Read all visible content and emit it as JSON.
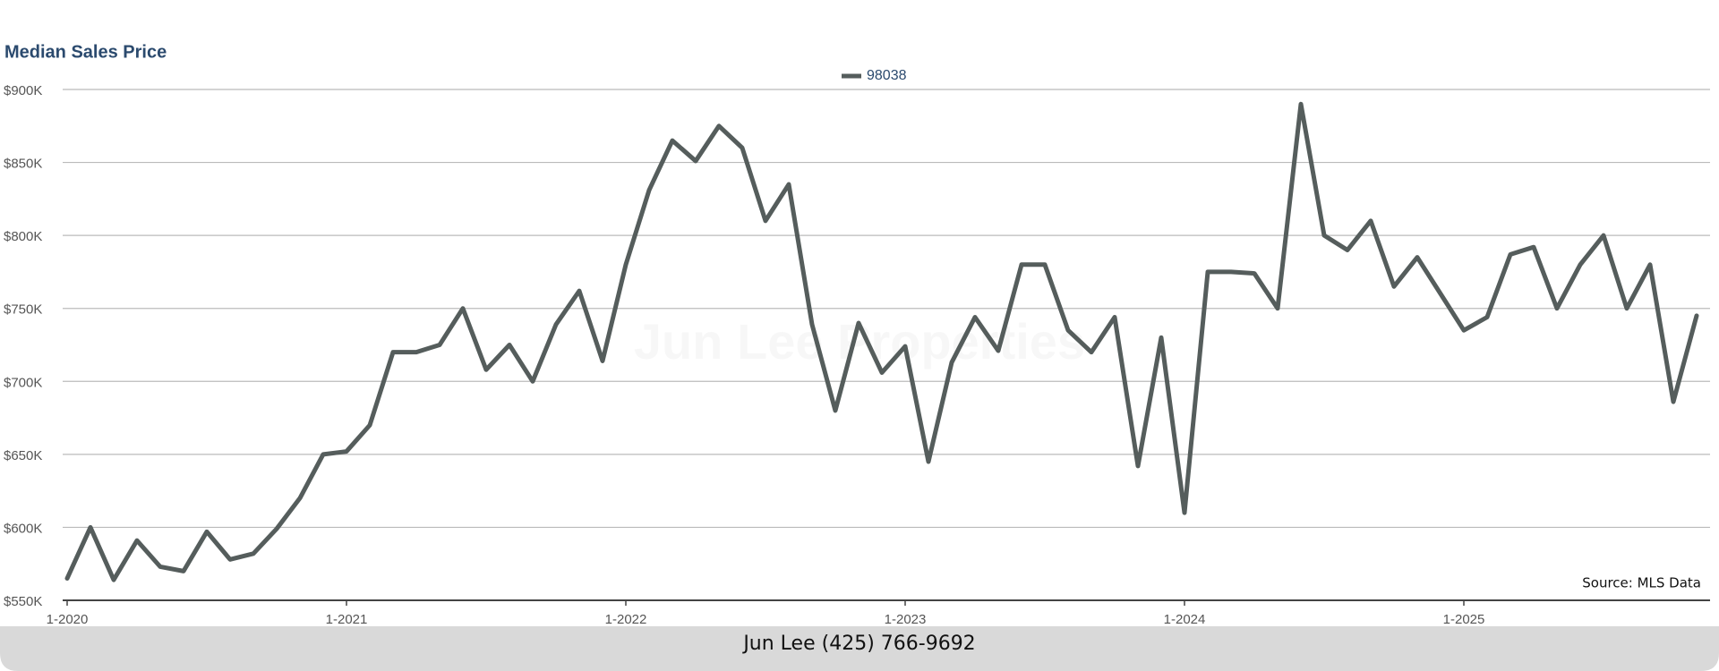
{
  "chart_data": {
    "type": "line",
    "title": "Median Sales Price",
    "watermark": "Jun Lee Properties",
    "source": "Source: MLS Data",
    "footer": "Jun Lee (425) 766-9692",
    "categories": [
      "1-2020",
      null,
      null,
      null,
      null,
      null,
      null,
      null,
      null,
      null,
      null,
      null,
      "1-2021",
      null,
      null,
      null,
      null,
      null,
      null,
      null,
      null,
      null,
      null,
      null,
      "1-2022",
      null,
      null,
      null,
      null,
      null,
      null,
      null,
      null,
      null,
      null,
      null,
      "1-2023",
      null,
      null,
      null,
      null,
      null,
      null,
      null,
      null,
      null,
      null,
      null,
      "1-2024",
      null,
      null,
      null,
      null,
      null,
      null,
      null,
      null,
      null,
      null,
      null,
      "1-2025",
      null,
      null,
      null,
      null,
      null,
      null,
      null,
      null,
      null,
      null
    ],
    "series": [
      {
        "name": "98038",
        "color": "#555d5c",
        "values": [
          565000,
          600000,
          564000,
          591000,
          573000,
          570000,
          597000,
          578000,
          582000,
          599000,
          620000,
          650000,
          652000,
          670000,
          720000,
          720000,
          725000,
          750000,
          708000,
          725000,
          700000,
          739000,
          762000,
          714000,
          780000,
          831000,
          865000,
          851000,
          875000,
          860000,
          810000,
          835000,
          739000,
          680000,
          740000,
          706000,
          724000,
          645000,
          713000,
          744000,
          721000,
          780000,
          780000,
          735000,
          720000,
          744000,
          642000,
          730000,
          610000,
          775000,
          775000,
          774000,
          750000,
          890000,
          800000,
          790000,
          810000,
          765000,
          785000,
          760000,
          735000,
          744000,
          787000,
          792000,
          750000,
          780000,
          800000,
          750000,
          780000,
          686000,
          745000
        ]
      }
    ],
    "ylim": [
      550000,
      900000
    ],
    "yticks": [
      {
        "value": 550000,
        "label": "$550K"
      },
      {
        "value": 600000,
        "label": "$600K"
      },
      {
        "value": 650000,
        "label": "$650K"
      },
      {
        "value": 700000,
        "label": "$700K"
      },
      {
        "value": 750000,
        "label": "$750K"
      },
      {
        "value": 800000,
        "label": "$800K"
      },
      {
        "value": 850000,
        "label": "$850K"
      },
      {
        "value": 900000,
        "label": "$900K"
      }
    ],
    "grid": true
  }
}
